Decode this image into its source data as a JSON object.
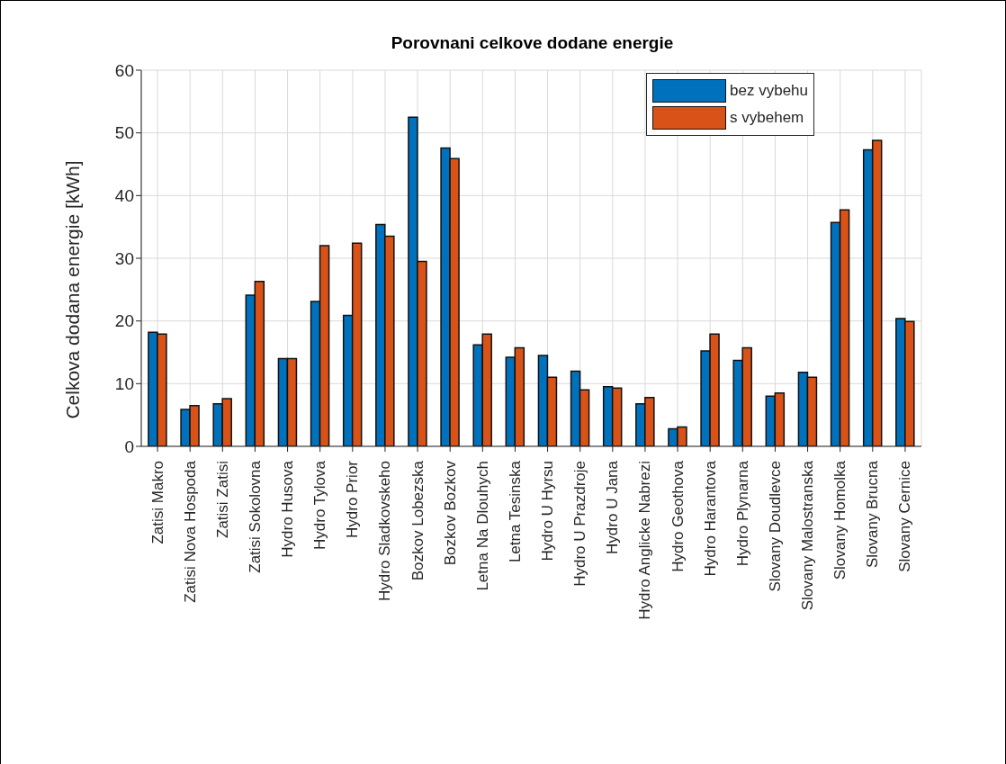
{
  "chart_data": {
    "type": "bar",
    "title": "Porovnani celkove dodane energie",
    "ylabel": "Celkova dodana energie [kWh]",
    "categories": [
      "Zatisi Makro",
      "Zatisi Nova Hospoda",
      "Zatisi Zatisi",
      "Zatisi Sokolovna",
      "Hydro Husova",
      "Hydro Tylova",
      "Hydro Prior",
      "Hydro Sladkovskeho",
      "Bozkov Lobezska",
      "Bozkov Bozkov",
      "Letna Na Dlouhych",
      "Letna Tesinska",
      "Hydro U Hyrsu",
      "Hydro U Prazdroje",
      "Hydro U Jana",
      "Hydro Anglicke Nabrezi",
      "Hydro Geothova",
      "Hydro Harantova",
      "Hydro Plynarna",
      "Slovany Doudlevce",
      "Slovany Malostranska",
      "Slovany Homolka",
      "Slovany Brucna",
      "Slovany Cernice"
    ],
    "series": [
      {
        "name": "bez vybehu",
        "color": "#0072bd",
        "values": [
          18.2,
          5.9,
          6.8,
          24.1,
          14.0,
          23.1,
          20.9,
          35.4,
          52.5,
          47.6,
          16.2,
          14.2,
          14.5,
          12.0,
          9.5,
          6.8,
          2.8,
          15.2,
          13.7,
          8.0,
          11.8,
          35.7,
          47.3,
          20.4
        ]
      },
      {
        "name": "s vybehem",
        "color": "#d95319",
        "values": [
          17.9,
          6.5,
          7.6,
          26.3,
          14.0,
          32.0,
          32.4,
          33.5,
          29.5,
          45.9,
          17.9,
          15.7,
          11.0,
          9.0,
          9.3,
          7.8,
          3.1,
          17.9,
          15.7,
          8.5,
          11.0,
          37.7,
          48.8,
          19.9
        ]
      }
    ],
    "ylim": [
      0,
      60
    ],
    "yticks": [
      0,
      10,
      20,
      30,
      40,
      50,
      60
    ],
    "grid": true,
    "legend": "top right"
  }
}
